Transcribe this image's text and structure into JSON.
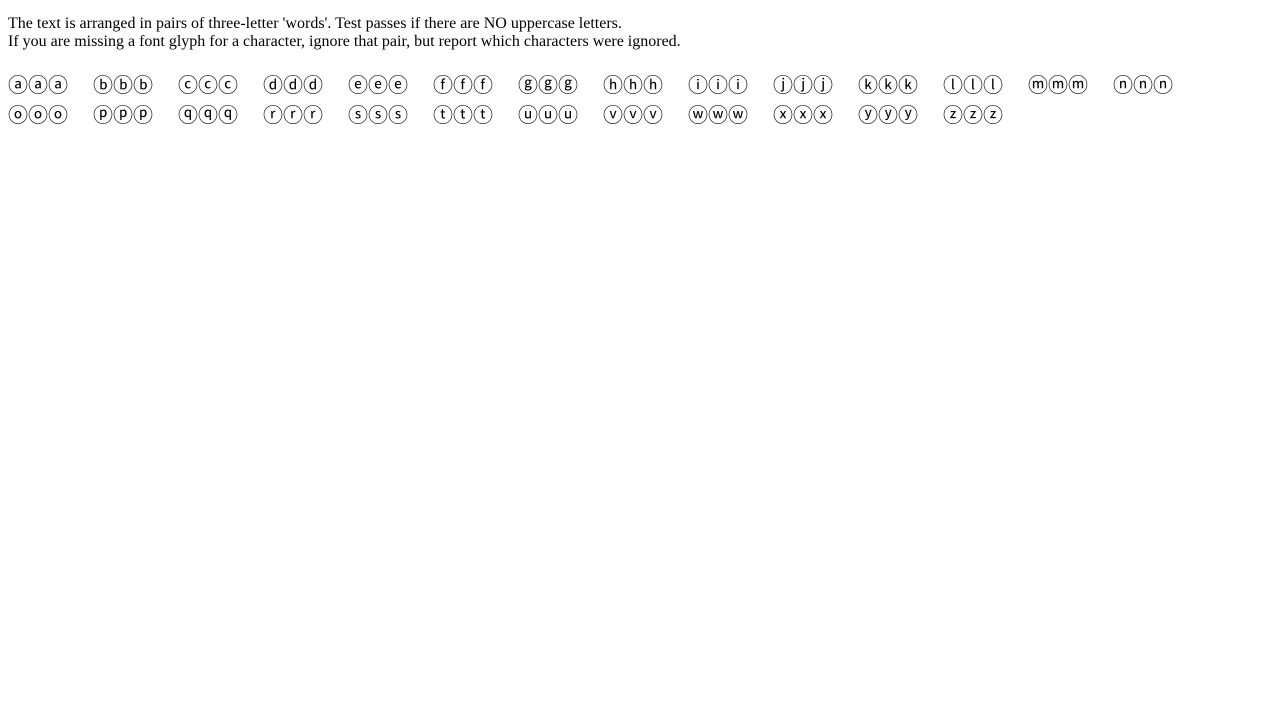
{
  "instructions": {
    "line1": "The text is arranged in pairs of three-letter 'words'. Test passes if there are NO uppercase letters.",
    "line2": "If you are missing a font glyph for a character, ignore that pair, but report which characters were ignored."
  },
  "test_words": [
    "ⓐⓐⓐ",
    "ⓑⓑⓑ",
    "ⓒⓒⓒ",
    "ⓓⓓⓓ",
    "ⓔⓔⓔ",
    "ⓕⓕⓕ",
    "ⓖⓖⓖ",
    "ⓗⓗⓗ",
    "ⓘⓘⓘ",
    "ⓙⓙⓙ",
    "ⓚⓚⓚ",
    "ⓛⓛⓛ",
    "ⓜⓜⓜ",
    "ⓝⓝⓝ",
    "ⓞⓞⓞ",
    "ⓟⓟⓟ",
    "ⓠⓠⓠ",
    "ⓡⓡⓡ",
    "ⓢⓢⓢ",
    "ⓣⓣⓣ",
    "ⓤⓤⓤ",
    "ⓥⓥⓥ",
    "ⓦⓦⓦ",
    "ⓧⓧⓧ",
    "ⓨⓨⓨ",
    "ⓩⓩⓩ"
  ]
}
